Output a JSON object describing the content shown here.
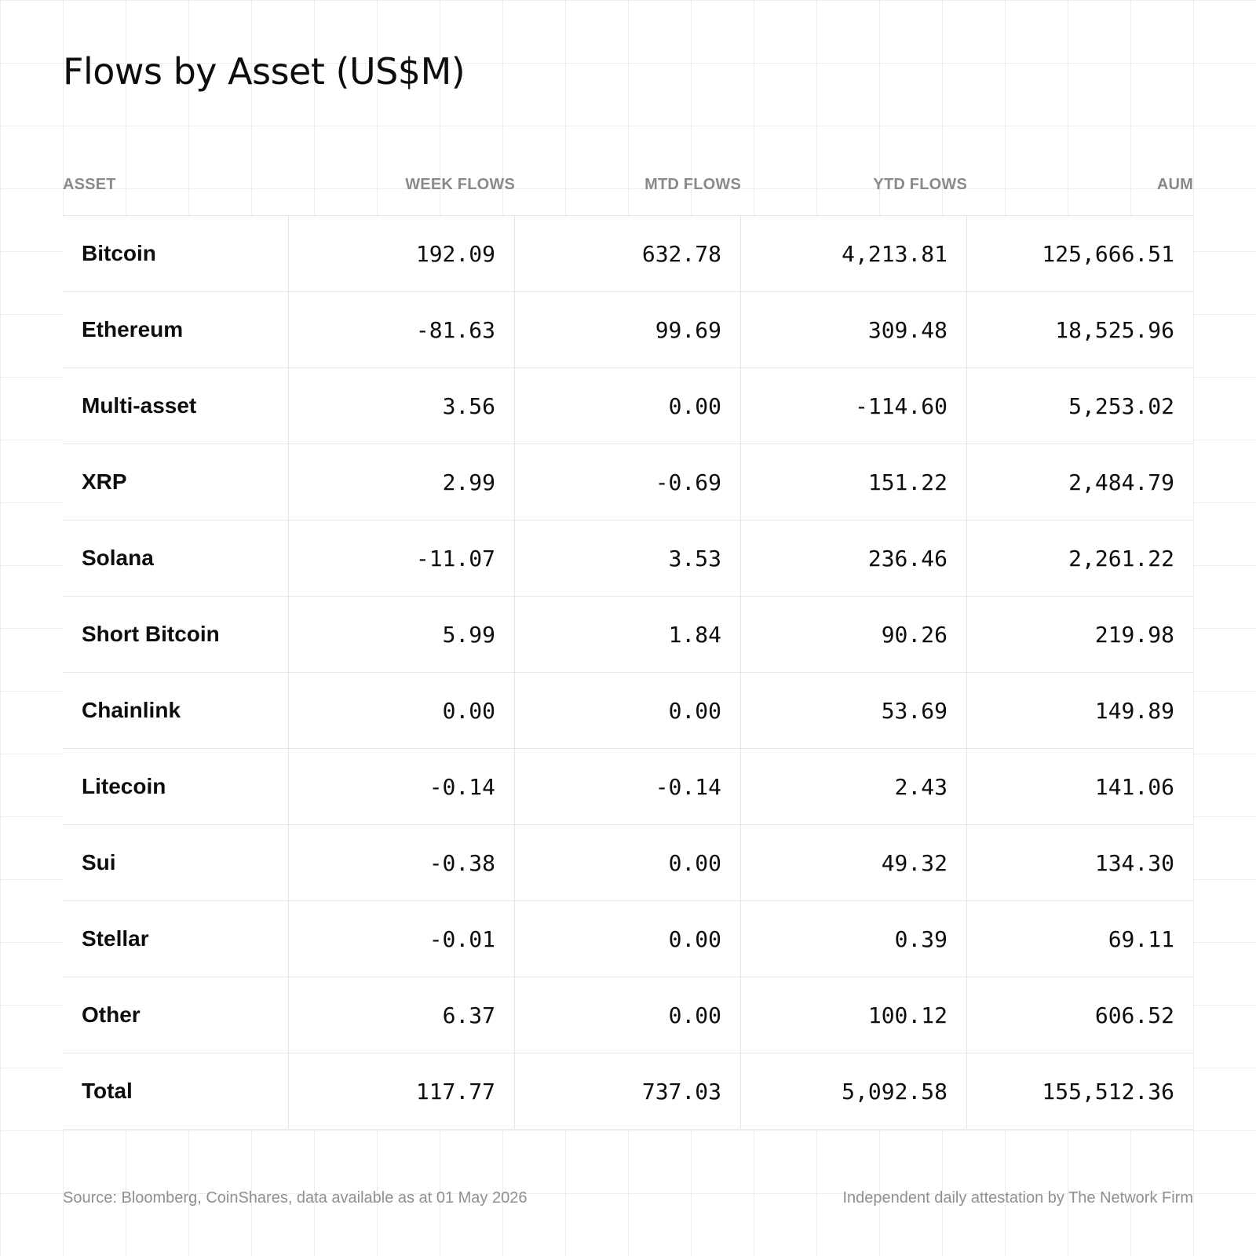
{
  "title": "Flows by Asset (US$M)",
  "columns": {
    "asset": "ASSET",
    "week": "WEEK FLOWS",
    "mtd": "MTD FLOWS",
    "ytd": "YTD FLOWS",
    "aum": "AUM"
  },
  "chart_data": {
    "type": "table",
    "title": "Flows by Asset (US$M)",
    "columns": [
      "ASSET",
      "WEEK FLOWS",
      "MTD FLOWS",
      "YTD FLOWS",
      "AUM"
    ],
    "rows": [
      {
        "asset": "Bitcoin",
        "week": "192.09",
        "mtd": "632.78",
        "ytd": "4,213.81",
        "aum": "125,666.51"
      },
      {
        "asset": "Ethereum",
        "week": "-81.63",
        "mtd": "99.69",
        "ytd": "309.48",
        "aum": "18,525.96"
      },
      {
        "asset": "Multi-asset",
        "week": "3.56",
        "mtd": "0.00",
        "ytd": "-114.60",
        "aum": "5,253.02"
      },
      {
        "asset": "XRP",
        "week": "2.99",
        "mtd": "-0.69",
        "ytd": "151.22",
        "aum": "2,484.79"
      },
      {
        "asset": "Solana",
        "week": "-11.07",
        "mtd": "3.53",
        "ytd": "236.46",
        "aum": "2,261.22"
      },
      {
        "asset": "Short Bitcoin",
        "week": "5.99",
        "mtd": "1.84",
        "ytd": "90.26",
        "aum": "219.98"
      },
      {
        "asset": "Chainlink",
        "week": "0.00",
        "mtd": "0.00",
        "ytd": "53.69",
        "aum": "149.89"
      },
      {
        "asset": "Litecoin",
        "week": "-0.14",
        "mtd": "-0.14",
        "ytd": "2.43",
        "aum": "141.06"
      },
      {
        "asset": "Sui",
        "week": "-0.38",
        "mtd": "0.00",
        "ytd": "49.32",
        "aum": "134.30"
      },
      {
        "asset": "Stellar",
        "week": "-0.01",
        "mtd": "0.00",
        "ytd": "0.39",
        "aum": "69.11"
      },
      {
        "asset": "Other",
        "week": "6.37",
        "mtd": "0.00",
        "ytd": "100.12",
        "aum": "606.52"
      },
      {
        "asset": "Total",
        "week": "117.77",
        "mtd": "737.03",
        "ytd": "5,092.58",
        "aum": "155,512.36"
      }
    ]
  },
  "footer": {
    "source": "Source: Bloomberg, CoinShares, data available as at 01 May 2026",
    "attestation": "Independent daily attestation by The Network Firm"
  }
}
